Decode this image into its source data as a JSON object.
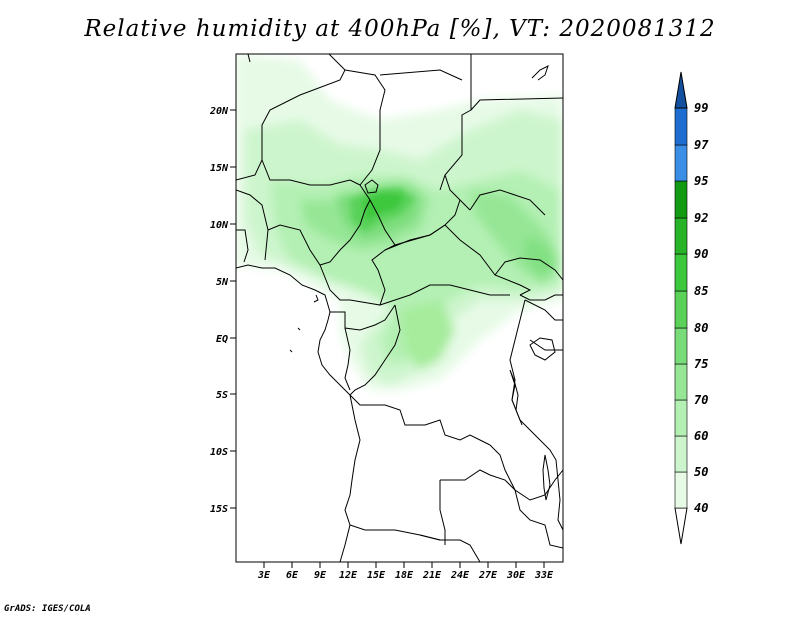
{
  "title": "Relative humidity at 400hPa [%], VT: 2020081312",
  "credit": "GrADS: IGES/COLA",
  "map": {
    "lon_range": [
      0,
      35
    ],
    "lat_range": [
      -20,
      25
    ],
    "y_ticks": [
      "20N",
      "15N",
      "10N",
      "5N",
      "EQ",
      "5S",
      "10S",
      "15S"
    ],
    "x_ticks": [
      "3E",
      "6E",
      "9E",
      "12E",
      "15E",
      "18E",
      "21E",
      "24E",
      "27E",
      "30E",
      "33E"
    ]
  },
  "colorbar": {
    "levels": [
      "40",
      "50",
      "60",
      "70",
      "75",
      "80",
      "85",
      "90",
      "92",
      "95",
      "97",
      "99"
    ],
    "colors": [
      "#e6fae6",
      "#cdf5cd",
      "#b4f0b4",
      "#96e696",
      "#78dc78",
      "#5ad25a",
      "#3cc83c",
      "#28b428",
      "#1a9a1a",
      "#0f8a0f",
      "#3a8ee6",
      "#1e6ed2",
      "#1450a0"
    ]
  },
  "colors": {
    "border": "#000000",
    "background": "#ffffff"
  }
}
